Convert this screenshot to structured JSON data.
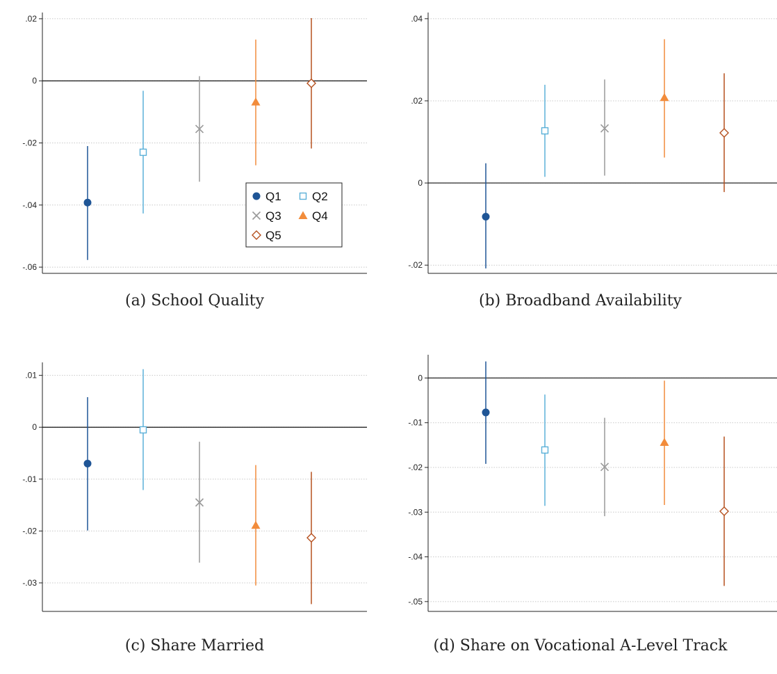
{
  "captions": [
    "(a) School Quality",
    "(b) Broadband Availability",
    "(c) Share Married",
    "(d) Share on Vocational A-Level Track"
  ],
  "series_styles": [
    {
      "name": "Q1",
      "color": "#1f5596",
      "marker": "circle"
    },
    {
      "name": "Q2",
      "color": "#5bb0d8",
      "marker": "square-open"
    },
    {
      "name": "Q3",
      "color": "#9a9a9a",
      "marker": "x"
    },
    {
      "name": "Q4",
      "color": "#f28c3b",
      "marker": "triangle"
    },
    {
      "name": "Q5",
      "color": "#b5501e",
      "marker": "diamond-open"
    }
  ],
  "chart_data": [
    {
      "type": "scatter",
      "title": "(a) School Quality",
      "categories": [
        "Q1",
        "Q2",
        "Q3",
        "Q4",
        "Q5"
      ],
      "values": [
        -0.0392,
        -0.023,
        -0.0155,
        -0.0068,
        -0.0008
      ],
      "ci_low": [
        -0.0577,
        -0.0427,
        -0.0325,
        -0.0272,
        -0.0218
      ],
      "ci_high": [
        -0.021,
        -0.0032,
        0.0015,
        0.0133,
        0.0202
      ],
      "yticks": [
        ".02",
        "0",
        "-.02",
        "-.04",
        "-.06"
      ],
      "ytick_values": [
        0.02,
        0,
        -0.02,
        -0.04,
        -0.06
      ],
      "ylim": [
        -0.062,
        0.022
      ],
      "grid": true,
      "zero_line": true,
      "legend": {
        "entries": [
          "Q1",
          "Q2",
          "Q3",
          "Q4",
          "Q5"
        ],
        "placement": "bottom-right"
      }
    },
    {
      "type": "scatter",
      "title": "(b) Broadband Availability",
      "categories": [
        "Q1",
        "Q2",
        "Q3",
        "Q4",
        "Q5"
      ],
      "values": [
        -0.0082,
        0.0127,
        0.0133,
        0.0208,
        0.0122
      ],
      "ci_low": [
        -0.0208,
        0.0015,
        0.0018,
        0.0062,
        -0.0022
      ],
      "ci_high": [
        0.0048,
        0.0239,
        0.0252,
        0.035,
        0.0267
      ],
      "yticks": [
        ".04",
        ".02",
        "0",
        "-.02"
      ],
      "ytick_values": [
        0.04,
        0.02,
        0,
        -0.02
      ],
      "ylim": [
        -0.022,
        0.0415
      ],
      "grid": true,
      "zero_line": true
    },
    {
      "type": "scatter",
      "title": "(c) Share Married",
      "categories": [
        "Q1",
        "Q2",
        "Q3",
        "Q4",
        "Q5"
      ],
      "values": [
        -0.007,
        -0.0005,
        -0.0145,
        -0.0189,
        -0.0213
      ],
      "ci_low": [
        -0.0199,
        -0.0121,
        -0.0261,
        -0.0305,
        -0.0341
      ],
      "ci_high": [
        0.0058,
        0.0112,
        -0.0028,
        -0.0073,
        -0.0086
      ],
      "yticks": [
        ".01",
        "0",
        "-.01",
        "-.02",
        "-.03"
      ],
      "ytick_values": [
        0.01,
        0,
        -0.01,
        -0.02,
        -0.03
      ],
      "ylim": [
        -0.0355,
        0.0125
      ],
      "grid": true,
      "zero_line": true
    },
    {
      "type": "scatter",
      "title": "(d) Share on Vocational A-Level Track",
      "categories": [
        "Q1",
        "Q2",
        "Q3",
        "Q4",
        "Q5"
      ],
      "values": [
        -0.0077,
        -0.0161,
        -0.0199,
        -0.0144,
        -0.0298
      ],
      "ci_low": [
        -0.0192,
        -0.0286,
        -0.0309,
        -0.0284,
        -0.0465
      ],
      "ci_high": [
        0.0037,
        -0.0037,
        -0.0089,
        -0.0006,
        -0.0131
      ],
      "yticks": [
        "0",
        "-.01",
        "-.02",
        "-.03",
        "-.04",
        "-.05"
      ],
      "ytick_values": [
        0,
        -0.01,
        -0.02,
        -0.03,
        -0.04,
        -0.05
      ],
      "ylim": [
        -0.0522,
        0.0052
      ],
      "grid": true,
      "zero_line": true
    }
  ]
}
